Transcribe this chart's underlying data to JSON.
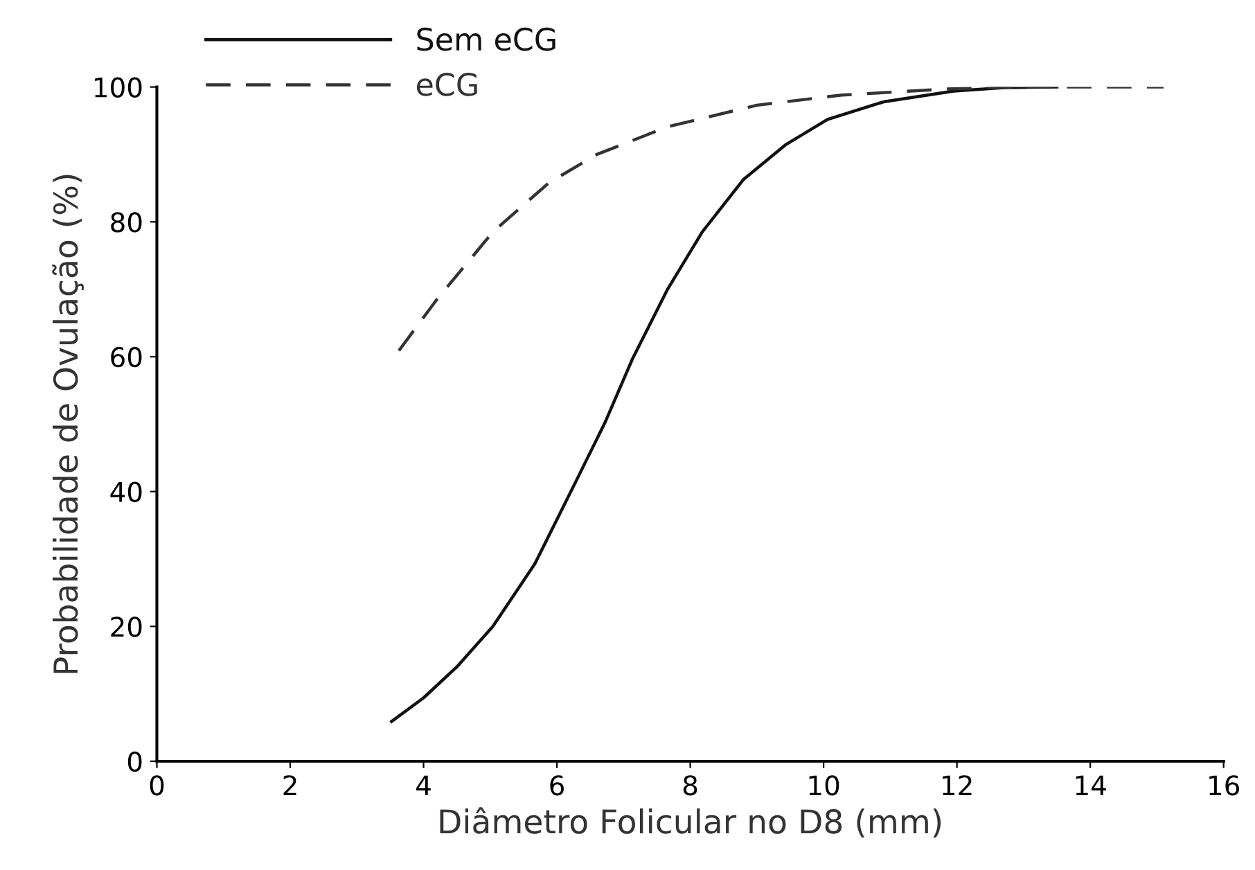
{
  "chart_data": {
    "type": "line",
    "xlabel": "Diâmetro Folicular no D8 (mm)",
    "ylabel": "Probabilidade de Ovulação (%)",
    "xlim": [
      0,
      16
    ],
    "ylim": [
      0,
      100
    ],
    "xticks": [
      0,
      2,
      4,
      6,
      8,
      10,
      12,
      14,
      16
    ],
    "yticks": [
      0,
      20,
      40,
      60,
      80,
      100
    ],
    "grid": false,
    "legend": "top left",
    "series": [
      {
        "name": "Sem eCG",
        "color": "#111111",
        "line_style": "solid",
        "x": [
          3.52,
          4.0,
          4.5,
          5.04,
          5.67,
          6.3,
          6.72,
          7.13,
          7.66,
          8.18,
          8.8,
          9.44,
          10.06,
          10.9,
          11.95,
          12.7,
          13.5
        ],
        "values": [
          5.9,
          9.4,
          14,
          20,
          29.3,
          41.8,
          50.2,
          59.6,
          70,
          78.5,
          86.3,
          91.5,
          95.2,
          97.8,
          99.4,
          99.9,
          100
        ]
      },
      {
        "name": "eCG",
        "color": "#333333",
        "line_style": "dashed",
        "x": [
          3.63,
          4.2,
          5.04,
          5.88,
          6.6,
          7.66,
          9.0,
          10.27,
          11.84,
          12.7,
          15.1
        ],
        "values": [
          60.9,
          68.5,
          78.5,
          85.8,
          90,
          94.1,
          97.3,
          98.8,
          99.7,
          100,
          100
        ]
      }
    ]
  }
}
